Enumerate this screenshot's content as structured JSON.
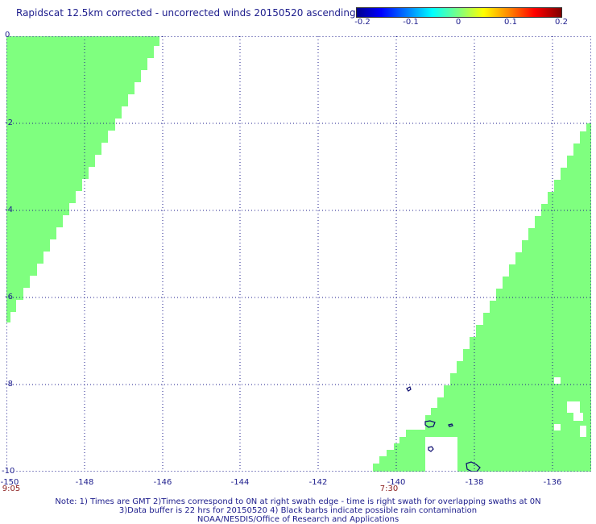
{
  "title": "Rapidscat 12.5km corrected - uncorrected winds 20150520 ascending",
  "colorbar": {
    "ticks": [
      "-0.2",
      "-0.1",
      "0",
      "0.1",
      "0.2"
    ],
    "colors": [
      "#00008f",
      "#0000ff",
      "#00ffff",
      "#7fff7f",
      "#ffff00",
      "#ff8000",
      "#800000"
    ]
  },
  "axes": {
    "x_ticks": [
      "-150",
      "-148",
      "-146",
      "-144",
      "-142",
      "-140",
      "-138",
      "-136"
    ],
    "y_ticks": [
      "0",
      "-2",
      "-4",
      "-6",
      "-8",
      "-10"
    ],
    "lon_range": [
      -150,
      -135
    ],
    "lat_range": [
      -10,
      0
    ]
  },
  "times": [
    "9:05",
    "7:30"
  ],
  "notes": [
    "Note: 1) Times are GMT 2)Times correspond to 0N at right swath edge - time is right swath for overlapping swaths at 0N",
    "3)Data buffer is 22 hrs for 20150520 4) Black barbs indicate possible rain contamination",
    "NOAA/NESDIS/Office of Research and Applications"
  ],
  "swath_color": "#7fff7f"
}
